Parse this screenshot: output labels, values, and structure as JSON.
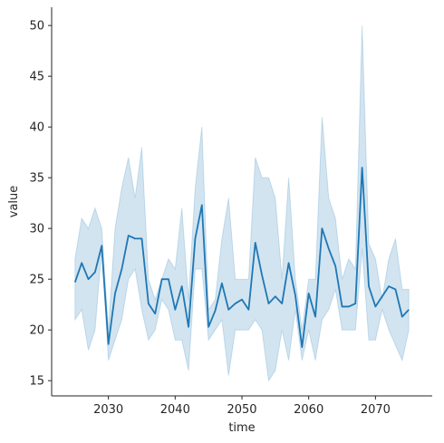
{
  "chart_data": {
    "type": "line",
    "title": "",
    "xlabel": "time",
    "ylabel": "value",
    "xlim": [
      2021.5,
      2078.5
    ],
    "ylim": [
      13.5,
      51.8
    ],
    "xticks": [
      2030,
      2040,
      2050,
      2060,
      2070
    ],
    "yticks": [
      15,
      20,
      25,
      30,
      35,
      40,
      45,
      50
    ],
    "grid": false,
    "legend": "none",
    "colors": {
      "line": "#1f77b4",
      "band": "#1f77b4"
    },
    "series": [
      {
        "x": [
          2025,
          2026,
          2027,
          2028,
          2029,
          2030,
          2031,
          2032,
          2033,
          2034,
          2035,
          2036,
          2037,
          2038,
          2039,
          2040,
          2041,
          2042,
          2043,
          2044,
          2045,
          2046,
          2047,
          2048,
          2049,
          2050,
          2051,
          2052,
          2053,
          2054,
          2055,
          2056,
          2057,
          2058,
          2059,
          2060,
          2061,
          2062,
          2063,
          2064,
          2065,
          2066,
          2067,
          2068,
          2069,
          2070,
          2071,
          2072,
          2073,
          2074,
          2075
        ],
        "y": [
          24.7,
          26.6,
          25.0,
          25.7,
          28.3,
          18.6,
          23.6,
          26.0,
          29.3,
          29.0,
          29.0,
          22.6,
          21.6,
          25.0,
          25.0,
          22.0,
          24.3,
          20.3,
          29.0,
          32.3,
          20.3,
          21.9,
          24.6,
          22.0,
          22.6,
          23.0,
          22.0,
          28.6,
          25.4,
          22.6,
          23.3,
          22.6,
          26.6,
          23.4,
          18.3,
          23.6,
          21.3,
          30.0,
          28.0,
          26.3,
          22.3,
          22.3,
          22.6,
          36.0,
          24.3,
          22.3,
          23.3,
          24.3,
          24.0,
          21.3,
          22.0
        ],
        "ci_low": [
          21.0,
          22.0,
          18.0,
          20.0,
          28.0,
          17.0,
          19.0,
          21.0,
          25.0,
          26.0,
          22.0,
          19.0,
          20.0,
          23.0,
          22.0,
          19.0,
          19.0,
          16.0,
          26.0,
          26.0,
          19.0,
          20.0,
          21.0,
          15.5,
          20.0,
          20.0,
          20.0,
          21.0,
          20.0,
          15.0,
          16.0,
          20.0,
          17.0,
          22.0,
          17.0,
          20.0,
          17.0,
          21.0,
          22.0,
          24.0,
          20.0,
          20.0,
          20.0,
          28.0,
          19.0,
          19.0,
          22.0,
          20.0,
          18.5,
          17.0,
          20.0
        ],
        "ci_high": [
          27.0,
          31.0,
          30.0,
          32.0,
          30.0,
          20.0,
          30.0,
          34.0,
          37.0,
          33.0,
          38.0,
          25.0,
          23.0,
          25.0,
          27.0,
          26.0,
          32.0,
          23.0,
          34.0,
          40.0,
          22.0,
          23.0,
          29.0,
          33.0,
          25.0,
          25.0,
          25.0,
          37.0,
          35.0,
          35.0,
          33.0,
          25.0,
          35.0,
          25.0,
          20.0,
          25.0,
          25.0,
          41.0,
          33.0,
          31.0,
          25.0,
          27.0,
          26.0,
          50.0,
          28.5,
          27.0,
          23.0,
          27.0,
          29.0,
          24.0,
          24.0
        ]
      }
    ]
  }
}
